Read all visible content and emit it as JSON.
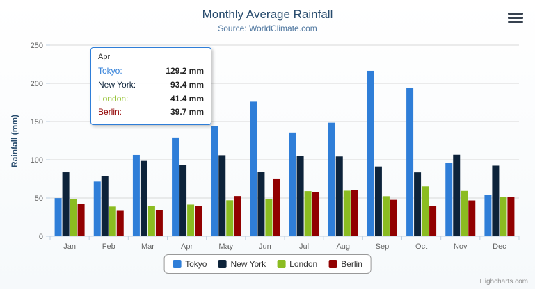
{
  "chart_data": {
    "type": "bar",
    "title": "Monthly Average Rainfall",
    "subtitle": "Source: WorldClimate.com",
    "xlabel": "",
    "ylabel": "Rainfall (mm)",
    "categories": [
      "Jan",
      "Feb",
      "Mar",
      "Apr",
      "May",
      "Jun",
      "Jul",
      "Aug",
      "Sep",
      "Oct",
      "Nov",
      "Dec"
    ],
    "series": [
      {
        "name": "Tokyo",
        "color": "#2f7ed8",
        "values": [
          49.9,
          71.5,
          106.4,
          129.2,
          144.0,
          176.0,
          135.6,
          148.5,
          216.4,
          194.1,
          95.6,
          54.4
        ]
      },
      {
        "name": "New York",
        "color": "#0d233a",
        "values": [
          83.6,
          78.8,
          98.5,
          93.4,
          106.0,
          84.5,
          105.0,
          104.3,
          91.2,
          83.5,
          106.6,
          92.3
        ]
      },
      {
        "name": "London",
        "color": "#8bbc21",
        "values": [
          48.9,
          38.8,
          39.3,
          41.4,
          47.0,
          48.3,
          59.0,
          59.6,
          52.4,
          65.2,
          59.3,
          51.2
        ]
      },
      {
        "name": "Berlin",
        "color": "#910000",
        "values": [
          42.4,
          33.2,
          34.5,
          39.7,
          52.6,
          75.5,
          57.4,
          60.4,
          47.6,
          39.1,
          46.8,
          51.1
        ]
      }
    ],
    "ylim": [
      0,
      250
    ],
    "yticks": [
      0,
      50,
      100,
      150,
      200,
      250
    ],
    "grid": true,
    "legend_position": "bottom"
  },
  "tooltip": {
    "header": "Apr",
    "border_color": "#2f7ed8",
    "rows": [
      {
        "name": "Tokyo:",
        "value": "129.2 mm",
        "color": "#2f7ed8"
      },
      {
        "name": "New York:",
        "value": "93.4 mm",
        "color": "#0d233a"
      },
      {
        "name": "London:",
        "value": "41.4 mm",
        "color": "#8bbc21"
      },
      {
        "name": "Berlin:",
        "value": "39.7 mm",
        "color": "#910000"
      }
    ]
  },
  "credits": {
    "label": "Highcharts.com"
  }
}
